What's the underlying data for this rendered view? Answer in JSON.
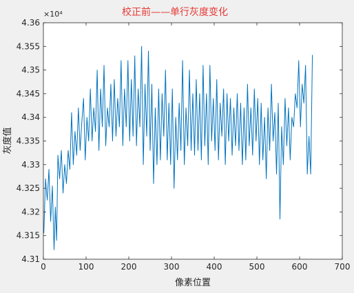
{
  "chart_data": {
    "type": "line",
    "title": "校正前——单行灰度变化",
    "xlabel": "像素位置",
    "ylabel": "灰度值",
    "y_exponent_label": "×10⁴",
    "xlim": [
      0,
      700
    ],
    "ylim": [
      4.31,
      4.36
    ],
    "x_ticks": [
      0,
      100,
      200,
      300,
      400,
      500,
      600,
      700
    ],
    "x_tick_labels": [
      "0",
      "100",
      "200",
      "300",
      "400",
      "500",
      "600",
      "700"
    ],
    "y_ticks": [
      4.31,
      4.315,
      4.32,
      4.325,
      4.33,
      4.335,
      4.34,
      4.345,
      4.35,
      4.355,
      4.36
    ],
    "y_tick_labels": [
      "4.31",
      "4.315",
      "4.32",
      "4.325",
      "4.33",
      "4.335",
      "4.34",
      "4.345",
      "4.35",
      "4.355",
      "4.36"
    ],
    "grid": false,
    "series": [
      {
        "name": "",
        "color": "#0072bd",
        "x": [
          1,
          5,
          9,
          13,
          17,
          21,
          25,
          28,
          31,
          34,
          38,
          42,
          46,
          50,
          54,
          58,
          62,
          66,
          70,
          74,
          78,
          82,
          86,
          90,
          94,
          98,
          102,
          106,
          110,
          114,
          118,
          122,
          126,
          130,
          134,
          138,
          142,
          146,
          150,
          154,
          158,
          162,
          166,
          170,
          174,
          178,
          182,
          186,
          190,
          194,
          198,
          202,
          206,
          210,
          214,
          218,
          222,
          226,
          230,
          234,
          238,
          242,
          246,
          250,
          254,
          258,
          262,
          266,
          270,
          274,
          278,
          282,
          286,
          290,
          294,
          298,
          302,
          306,
          310,
          314,
          318,
          322,
          326,
          330,
          334,
          338,
          342,
          346,
          350,
          354,
          358,
          362,
          366,
          370,
          374,
          378,
          382,
          386,
          390,
          394,
          398,
          402,
          406,
          410,
          414,
          418,
          422,
          426,
          430,
          434,
          438,
          442,
          446,
          450,
          454,
          458,
          462,
          466,
          470,
          474,
          478,
          482,
          486,
          490,
          494,
          498,
          502,
          506,
          510,
          514,
          518,
          522,
          526,
          530,
          534,
          538,
          542,
          546,
          550,
          554,
          558,
          562,
          566,
          570,
          574,
          578,
          582,
          586,
          590,
          594,
          598,
          602,
          606,
          610,
          614,
          618,
          622,
          626,
          630
        ],
        "values": [
          43155,
          43270,
          43225,
          43290,
          43180,
          43255,
          43120,
          43210,
          43140,
          43320,
          43270,
          43330,
          43240,
          43300,
          43260,
          43330,
          43290,
          43410,
          43300,
          43370,
          43320,
          43420,
          43330,
          43390,
          43440,
          43310,
          43400,
          43350,
          43460,
          43350,
          43420,
          43370,
          43500,
          43330,
          43460,
          43380,
          43510,
          43340,
          43420,
          43380,
          43470,
          43350,
          43480,
          43360,
          43440,
          43380,
          43520,
          43340,
          43460,
          43380,
          43520,
          43350,
          43480,
          43360,
          43530,
          43340,
          43460,
          43380,
          43550,
          43300,
          43470,
          43360,
          43540,
          43330,
          43470,
          43260,
          43420,
          43300,
          43460,
          43310,
          43450,
          43360,
          43500,
          43310,
          43430,
          43300,
          43460,
          43250,
          43400,
          43310,
          43430,
          43330,
          43520,
          43300,
          43420,
          43340,
          43500,
          43330,
          43450,
          43320,
          43480,
          43330,
          43450,
          43310,
          43510,
          43340,
          43450,
          43300,
          43510,
          43350,
          43440,
          43330,
          43480,
          43310,
          43430,
          43360,
          43460,
          43300,
          43450,
          43350,
          43440,
          43320,
          43420,
          43340,
          43450,
          43330,
          43430,
          43300,
          43420,
          43310,
          43470,
          43340,
          43420,
          43320,
          43460,
          43350,
          43440,
          43300,
          43430,
          43310,
          43400,
          43270,
          43420,
          43330,
          43470,
          43350,
          43410,
          43280,
          43430,
          43185,
          43380,
          43300,
          43440,
          43340,
          43420,
          43310,
          43400,
          43380,
          43450,
          43420,
          43520,
          43380,
          43470,
          43430,
          43510,
          43280,
          43360,
          43280,
          43532
        ]
      }
    ]
  }
}
